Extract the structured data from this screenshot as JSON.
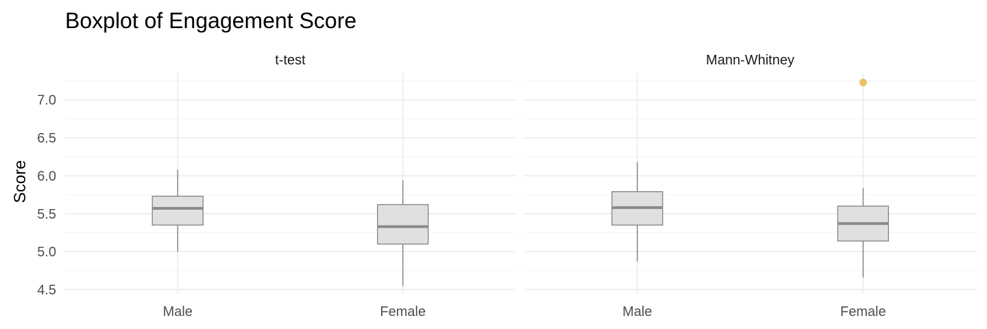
{
  "chart_data": {
    "type": "boxplot",
    "title": "Boxplot of Engagement Score",
    "ylabel": "Score",
    "xlabel": "",
    "ylim": [
      4.45,
      7.35
    ],
    "yticks": [
      4.5,
      5.0,
      5.5,
      6.0,
      6.5,
      7.0
    ],
    "ytick_labels": [
      "4.5",
      "5.0",
      "5.5",
      "6.0",
      "6.5",
      "7.0"
    ],
    "grid": true,
    "legend": "none",
    "colors": {
      "box_fill": "#e0e0e0",
      "box_stroke": "#808080",
      "median": "#8a8a8a",
      "whisker": "#808080",
      "outlier": "#e8b84a"
    },
    "panels": [
      {
        "label": "t-test",
        "categories": [
          "Male",
          "Female"
        ],
        "boxes": [
          {
            "category": "Male",
            "whisker_low": 5.0,
            "q1": 5.35,
            "median": 5.57,
            "q3": 5.73,
            "whisker_high": 6.08,
            "outliers": []
          },
          {
            "category": "Female",
            "whisker_low": 4.55,
            "q1": 5.1,
            "median": 5.33,
            "q3": 5.62,
            "whisker_high": 5.94,
            "outliers": []
          }
        ]
      },
      {
        "label": "Mann-Whitney",
        "categories": [
          "Male",
          "Female"
        ],
        "boxes": [
          {
            "category": "Male",
            "whisker_low": 4.87,
            "q1": 5.35,
            "median": 5.58,
            "q3": 5.79,
            "whisker_high": 6.18,
            "outliers": []
          },
          {
            "category": "Female",
            "whisker_low": 4.66,
            "q1": 5.14,
            "median": 5.37,
            "q3": 5.6,
            "whisker_high": 5.84,
            "outliers": [
              7.23
            ]
          }
        ]
      }
    ]
  }
}
